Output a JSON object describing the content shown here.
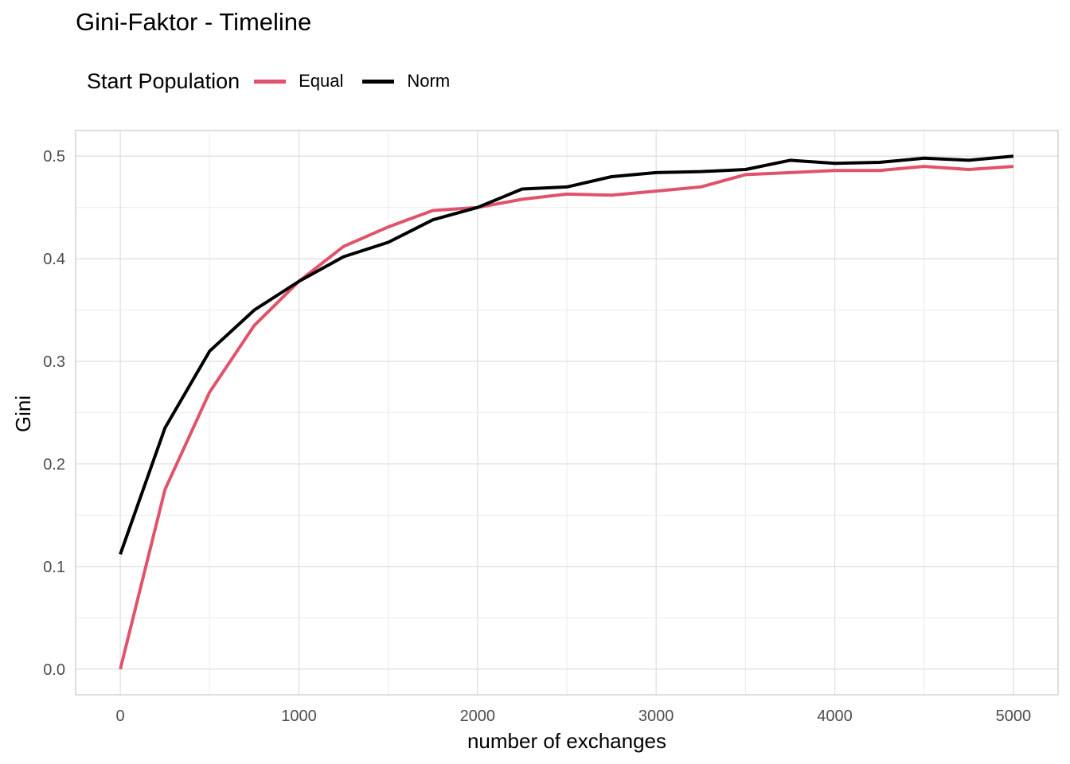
{
  "chart_data": {
    "type": "line",
    "title": "Gini-Faktor - Timeline",
    "xlabel": "number of exchanges",
    "ylabel": "Gini",
    "legend_title": "Start Population",
    "legend_position": "top-left",
    "grid": true,
    "xlim": [
      -250,
      5250
    ],
    "ylim": [
      -0.025,
      0.525
    ],
    "x_ticks": [
      0,
      1000,
      2000,
      3000,
      4000,
      5000
    ],
    "x_tick_labels": [
      "0",
      "1000",
      "2000",
      "3000",
      "4000",
      "5000"
    ],
    "y_ticks": [
      0.0,
      0.1,
      0.2,
      0.3,
      0.4,
      0.5
    ],
    "y_tick_labels": [
      "0.0",
      "0.1",
      "0.2",
      "0.3",
      "0.4",
      "0.5"
    ],
    "x": [
      0,
      250,
      500,
      750,
      1000,
      1250,
      1500,
      1750,
      2000,
      2250,
      2500,
      2750,
      3000,
      3250,
      3500,
      3750,
      4000,
      4250,
      4500,
      4750,
      5000
    ],
    "series": [
      {
        "name": "Equal",
        "color": "#DF536B",
        "values": [
          0.0,
          0.175,
          0.27,
          0.335,
          0.378,
          0.412,
          0.431,
          0.447,
          0.45,
          0.458,
          0.463,
          0.462,
          0.466,
          0.47,
          0.482,
          0.484,
          0.486,
          0.486,
          0.49,
          0.487,
          0.49
        ]
      },
      {
        "name": "Norm",
        "color": "#000000",
        "values": [
          0.112,
          0.235,
          0.31,
          0.35,
          0.378,
          0.402,
          0.416,
          0.438,
          0.45,
          0.468,
          0.47,
          0.48,
          0.484,
          0.485,
          0.487,
          0.496,
          0.493,
          0.494,
          0.498,
          0.496,
          0.5
        ]
      }
    ]
  }
}
